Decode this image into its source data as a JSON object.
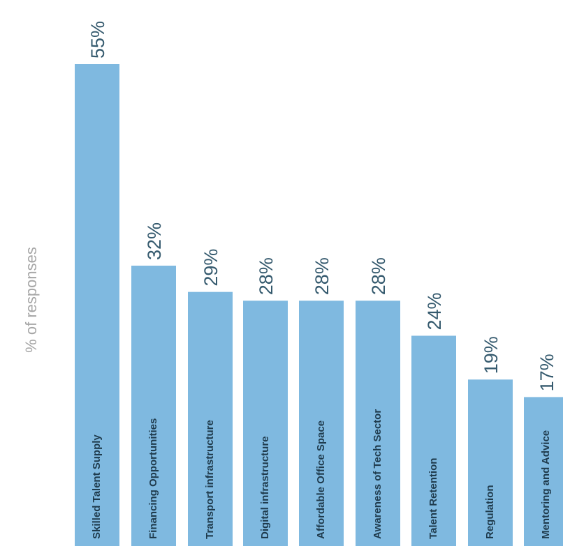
{
  "chart_data": {
    "type": "bar",
    "orientation": "vertical",
    "title": "",
    "xlabel": "",
    "ylabel": "% of responses",
    "ylim": [
      0,
      55
    ],
    "grid": false,
    "legend": "none",
    "bar_color": "#7fb9e0",
    "categories": [
      "Skilled Talent Supply",
      "Financing Opportunities",
      "Transport infrastructure",
      "Digital infrastructure",
      "Affordable Office Space",
      "Awareness of Tech Sector",
      "Talent Retention",
      "Regulation",
      "Mentoring and Advice"
    ],
    "values": [
      55,
      32,
      29,
      28,
      28,
      28,
      24,
      19,
      17
    ],
    "data_labels": [
      "55%",
      "32%",
      "29%",
      "28%",
      "28%",
      "28%",
      "24%",
      "19%",
      "17%"
    ]
  }
}
